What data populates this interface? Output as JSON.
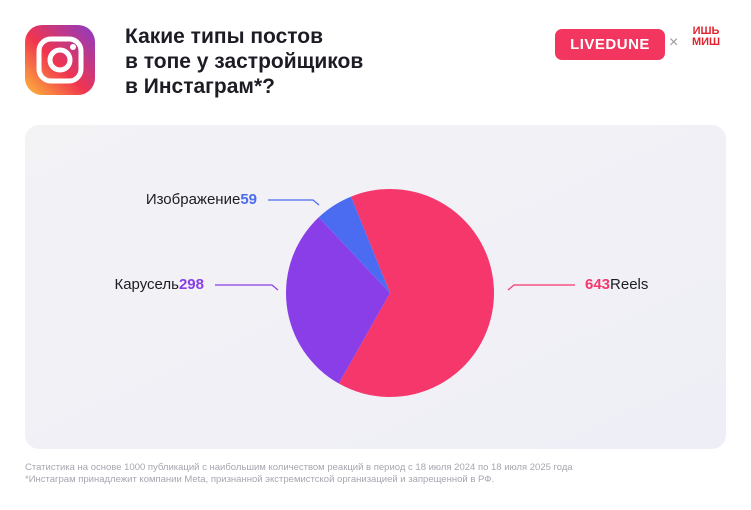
{
  "header": {
    "brand": "LIVEDUNE",
    "separator": "×",
    "partner": "ИШЬ МИШ"
  },
  "chart_data": {
    "type": "pie",
    "title": [
      "Какие типы постов",
      "в топе у застройщиков",
      "в Инстаграм*?"
    ],
    "categories": [
      "Reels",
      "Карусель",
      "Изображение"
    ],
    "values": [
      643,
      298,
      59
    ],
    "colors": [
      "#f6376c",
      "#8a3ee8",
      "#4b6cf0"
    ]
  },
  "notes": [
    "Статистика на основе 1000 публикаций с наибольшим количеством реакций в период с 18 июля 2024 по 18 июля 2025 года",
    "*Инстаграм принадлежит компании Meta, признанной экстремистской организацией и запрещенной в РФ."
  ]
}
